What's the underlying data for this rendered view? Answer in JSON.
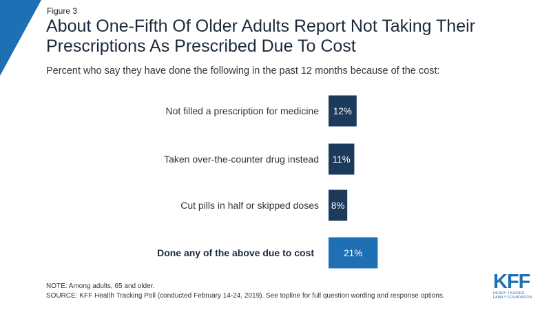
{
  "figure_label": "Figure 3",
  "colors": {
    "accent": "#1f6fb5",
    "bar_dark": "#1b3a5c",
    "bar_total": "#1f6fb5",
    "text": "#333333"
  },
  "chart_data": {
    "type": "bar",
    "orientation": "horizontal",
    "title": "About One-Fifth Of Older Adults Report Not Taking Their Prescriptions As Prescribed Due To Cost",
    "subtitle": "Percent who say they have done the following in the past 12 months because of the cost:",
    "categories": [
      "Not filled a prescription for medicine",
      "Taken over-the-counter drug instead",
      "Cut pills in half or skipped doses",
      "Done any of the above due to cost"
    ],
    "values": [
      12,
      11,
      8,
      21
    ],
    "value_labels": [
      "12%",
      "11%",
      "8%",
      "21%"
    ],
    "emphasized": [
      false,
      false,
      false,
      true
    ],
    "xlim": [
      0,
      100
    ],
    "grid": false,
    "legend": "none"
  },
  "footer": {
    "note": "NOTE: Among adults, 65 and older.",
    "source": "SOURCE: KFF Health Tracking Poll (conducted February 14-24, 2019). See topline for full question wording and response options."
  },
  "logo": {
    "mark": "KFF",
    "line1": "Henry J Kaiser",
    "line2": "Family Foundation"
  }
}
